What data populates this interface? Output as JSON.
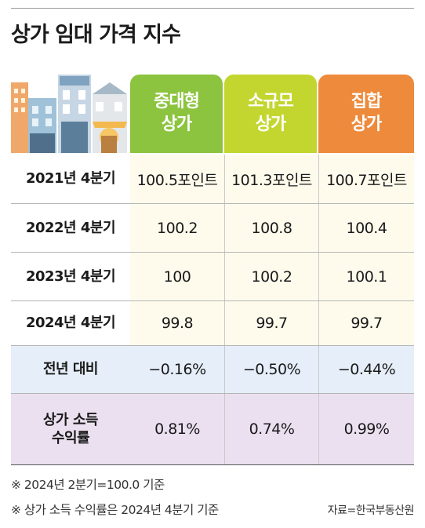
{
  "title": "상가 임대 가격 지수",
  "chart_data": {
    "type": "table",
    "columns": [
      "중대형\n상가",
      "소규모\n상가",
      "집합\n상가"
    ],
    "rows": [
      {
        "label": "2021년 4분기",
        "values": [
          "100.5포인트",
          "101.3포인트",
          "100.7포인트"
        ]
      },
      {
        "label": "2022년 4분기",
        "values": [
          "100.2",
          "100.8",
          "100.4"
        ]
      },
      {
        "label": "2023년 4분기",
        "values": [
          "100",
          "100.2",
          "100.1"
        ]
      },
      {
        "label": "2024년 4분기",
        "values": [
          "99.8",
          "99.7",
          "99.7"
        ]
      },
      {
        "label": "전년 대비",
        "values": [
          "−0.16%",
          "−0.50%",
          "−0.44%"
        ]
      },
      {
        "label": "상가 소득\n수익률",
        "values": [
          "0.81%",
          "0.74%",
          "0.99%"
        ]
      }
    ],
    "column_colors": [
      "#8cc43f",
      "#c3d630",
      "#ee8a3c"
    ]
  },
  "notes": [
    "※ 2024년 2분기=100.0 기준",
    "※ 상가 소득 수익률은 2024년 4분기 기준"
  ],
  "source": "자료=한국부동산원",
  "illustration": "city-buildings-illustration"
}
